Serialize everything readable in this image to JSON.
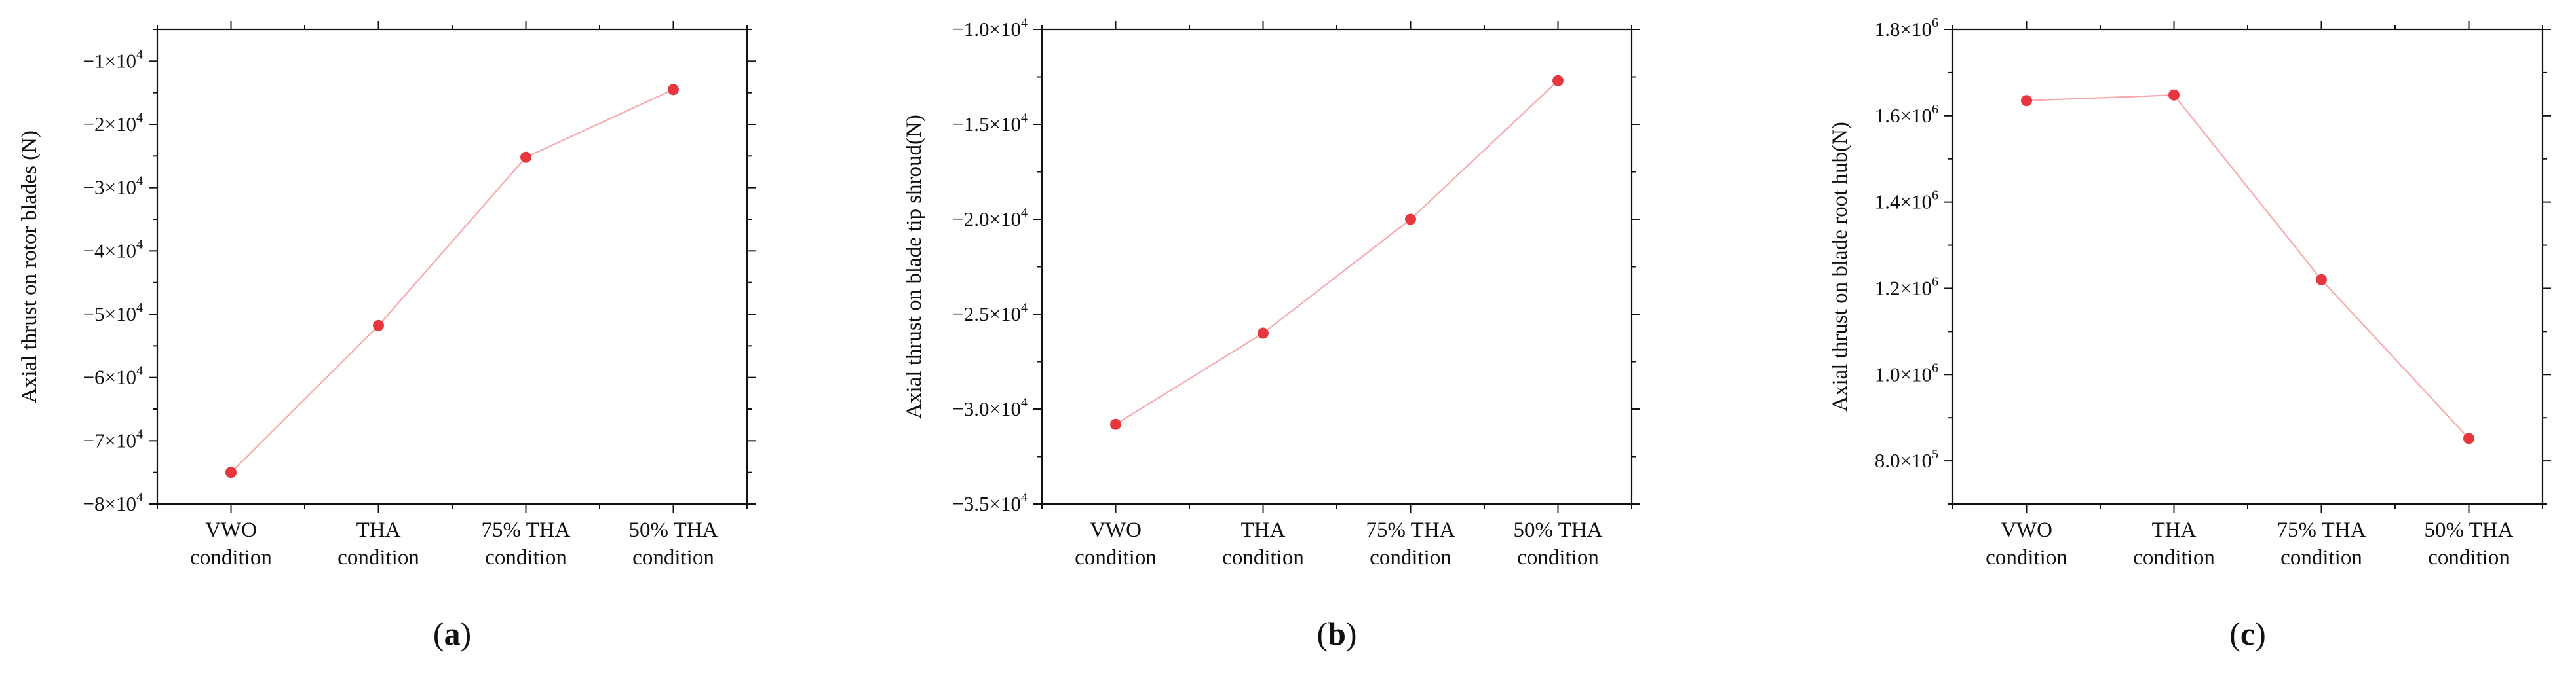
{
  "colors": {
    "point": "#e8363f",
    "line": "#f7a8ac",
    "axis": "#111111"
  },
  "chart_data": [
    {
      "type": "line",
      "panel_label": "a",
      "categories": [
        [
          "VWO",
          "condition"
        ],
        [
          "THA",
          "condition"
        ],
        [
          "75% THA",
          "condition"
        ],
        [
          "50% THA",
          "condition"
        ]
      ],
      "ylabel": "Axial thrust on rotor blades (N)",
      "ylim": [
        -80000,
        -5000
      ],
      "yticks": [
        {
          "value": -10000,
          "mant": "−1×10",
          "exp": "4"
        },
        {
          "value": -20000,
          "mant": "−2×10",
          "exp": "4"
        },
        {
          "value": -30000,
          "mant": "−3×10",
          "exp": "4"
        },
        {
          "value": -40000,
          "mant": "−4×10",
          "exp": "4"
        },
        {
          "value": -50000,
          "mant": "−5×10",
          "exp": "4"
        },
        {
          "value": -60000,
          "mant": "−6×10",
          "exp": "4"
        },
        {
          "value": -70000,
          "mant": "−7×10",
          "exp": "4"
        },
        {
          "value": -80000,
          "mant": "−8×10",
          "exp": "4"
        }
      ],
      "values": [
        -75000,
        -51800,
        -25200,
        -14500
      ]
    },
    {
      "type": "line",
      "panel_label": "b",
      "categories": [
        [
          "VWO",
          "condition"
        ],
        [
          "THA",
          "condition"
        ],
        [
          "75% THA",
          "condition"
        ],
        [
          "50% THA",
          "condition"
        ]
      ],
      "ylabel": "Axial thrust on blade tip shroud(N)",
      "ylim": [
        -35000,
        -10000
      ],
      "yticks": [
        {
          "value": -10000,
          "mant": "−1.0×10",
          "exp": "4"
        },
        {
          "value": -15000,
          "mant": "−1.5×10",
          "exp": "4"
        },
        {
          "value": -20000,
          "mant": "−2.0×10",
          "exp": "4"
        },
        {
          "value": -25000,
          "mant": "−2.5×10",
          "exp": "4"
        },
        {
          "value": -30000,
          "mant": "−3.0×10",
          "exp": "4"
        },
        {
          "value": -35000,
          "mant": "−3.5×10",
          "exp": "4"
        }
      ],
      "values": [
        -30800,
        -26000,
        -20000,
        -12700
      ]
    },
    {
      "type": "line",
      "panel_label": "c",
      "categories": [
        [
          "VWO",
          "condition"
        ],
        [
          "THA",
          "condition"
        ],
        [
          "75% THA",
          "condition"
        ],
        [
          "50% THA",
          "condition"
        ]
      ],
      "ylabel": "Axial thrust on blade root hub(N)",
      "ylim": [
        700000,
        1800000
      ],
      "yticks": [
        {
          "value": 800000,
          "mant": "8.0×10",
          "exp": "5"
        },
        {
          "value": 1000000,
          "mant": "1.0×10",
          "exp": "6"
        },
        {
          "value": 1200000,
          "mant": "1.2×10",
          "exp": "6"
        },
        {
          "value": 1400000,
          "mant": "1.4×10",
          "exp": "6"
        },
        {
          "value": 1600000,
          "mant": "1.6×10",
          "exp": "6"
        },
        {
          "value": 1800000,
          "mant": "1.8×10",
          "exp": "6"
        }
      ],
      "values": [
        1635000,
        1648000,
        1220000,
        852000
      ]
    }
  ]
}
